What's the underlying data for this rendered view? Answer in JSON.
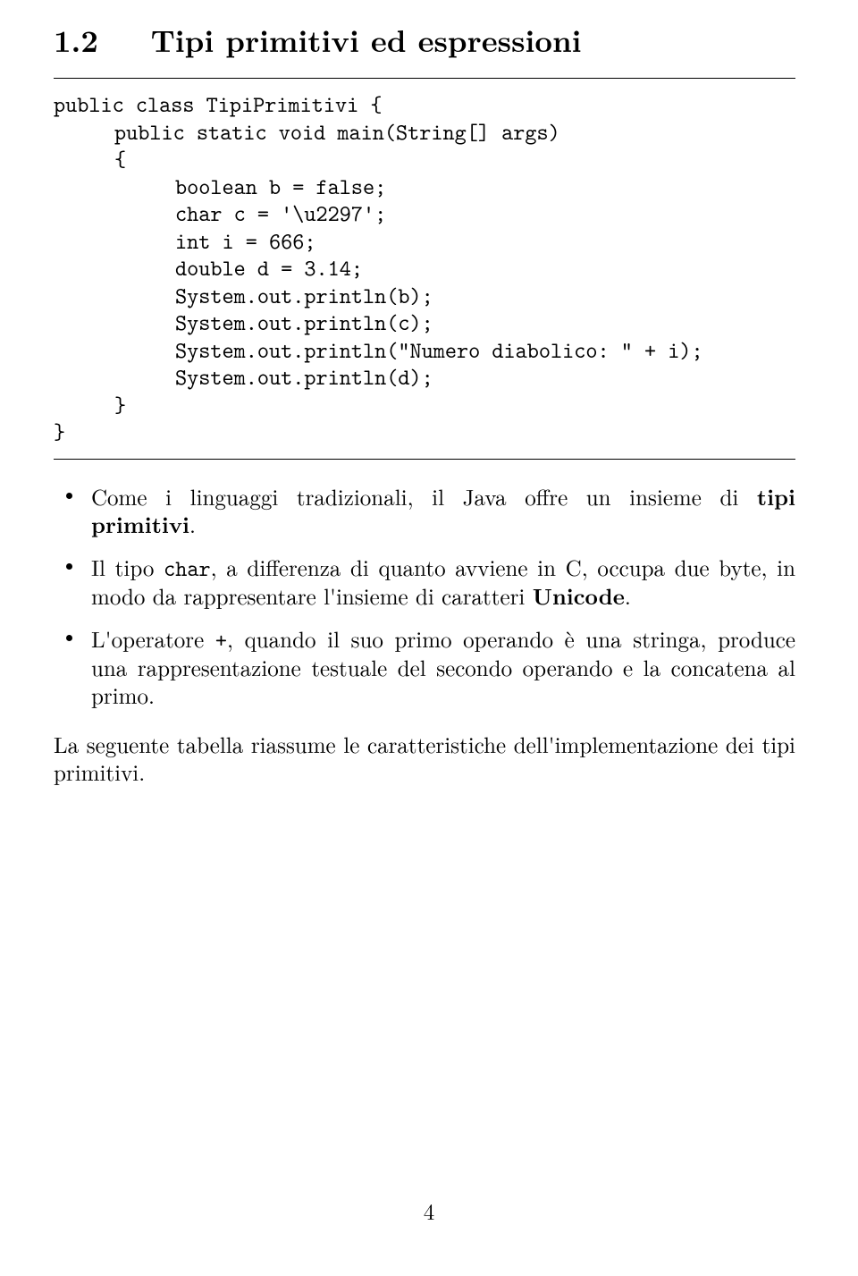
{
  "section": {
    "number": "1.2",
    "title": "Tipi primitivi ed espressioni"
  },
  "code": {
    "l1": "public class TipiPrimitivi {",
    "l2": "public static void main(String[] args)",
    "l3": "{",
    "l4": "boolean b = false;",
    "l5": "char c = '\\u2297';",
    "l6": "int i = 666;",
    "l7": "double d = 3.14;",
    "l8": "System.out.println(b);",
    "l9": "System.out.println(c);",
    "l10": "System.out.println(\"Numero diabolico: \" + i);",
    "l11": "System.out.println(d);",
    "l12": "}",
    "l13": "}"
  },
  "bullet1": {
    "a": "Come i linguaggi tradizionali, il Java offre un insieme di ",
    "b": "tipi primitivi",
    "c": "."
  },
  "bullet2": {
    "a": "Il tipo ",
    "b": "char",
    "c": ", a differenza di quanto avviene in C, occupa due byte, in modo da rappresentare l'insieme di caratteri ",
    "d": "Unicode",
    "e": "."
  },
  "bullet3": {
    "a": "L'operatore ",
    "b": "+",
    "c": ", quando il suo primo operando è una stringa, produce una rappresentazione testuale del secondo operando e la concatena al primo."
  },
  "closing": "La seguente tabella riassume le caratteristiche dell'implementazione dei tipi primitivi.",
  "pagenum": "4"
}
